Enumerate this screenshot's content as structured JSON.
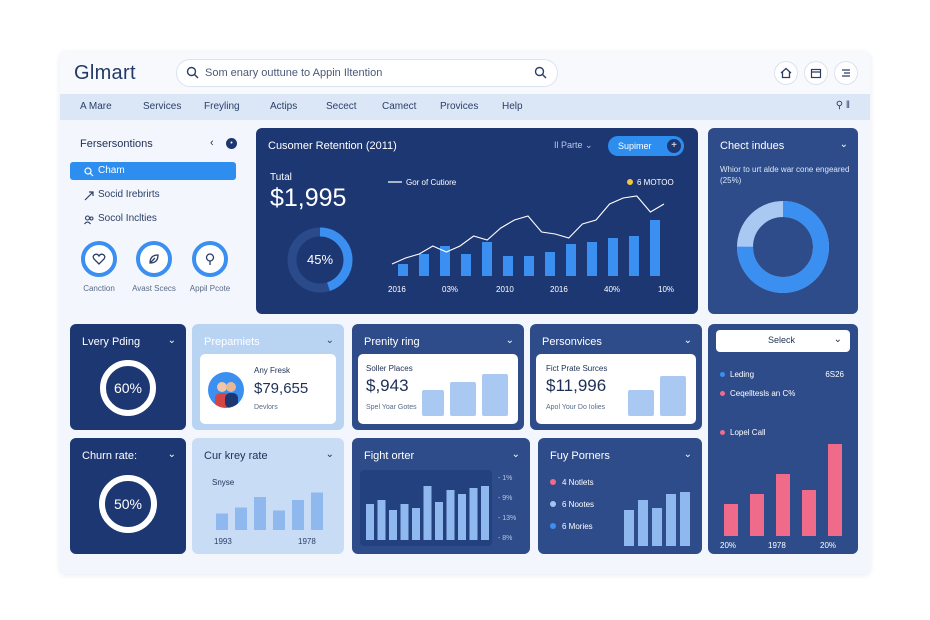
{
  "app": {
    "logo": "Glmart"
  },
  "search": {
    "text": "Som enary outtune to Appin Iltention"
  },
  "nav": {
    "items": [
      "A Mare",
      "Services",
      "Freyling",
      "Actips",
      "Secect",
      "Camect",
      "Provices",
      "Help"
    ],
    "right": "⚲ ‖"
  },
  "sidebar": {
    "title": "Fersersontions",
    "back": "‹",
    "items": [
      "Cham",
      "Socid Irebrirts",
      "Socol Inclties"
    ],
    "circles": [
      "Canction",
      "Avast Scecs",
      "Appil Pcote"
    ]
  },
  "retention": {
    "title": "Cusomer Retention (2011)",
    "filter": "Il Parte",
    "button": "Supimer",
    "total_label": "Tutal",
    "total_value": "$1,995",
    "pct": "45%",
    "pct_value": 0.45,
    "legend1": "Gor of Cutiore",
    "legend2": "6 MOTOO",
    "xlabels": [
      "2016",
      "03%",
      "2010",
      "2016",
      "40%",
      "10%"
    ],
    "bars": [
      12,
      22,
      30,
      22,
      34,
      20,
      20,
      24,
      32,
      34,
      38,
      40,
      56
    ],
    "line": [
      12,
      18,
      22,
      30,
      24,
      30,
      40,
      36,
      48,
      56,
      60,
      44,
      42,
      38,
      52,
      56,
      72,
      78,
      80,
      64,
      72
    ]
  },
  "check": {
    "title": "Chect indues",
    "subtitle": "Whior to urt alde war cone engeared (25%)",
    "donut_value": 0.75
  },
  "lvery": {
    "title": "Lvery Pding",
    "value": "60%",
    "progress": 0.6
  },
  "churn": {
    "title": "Churn rate:",
    "value": "50%",
    "progress": 0.5
  },
  "prepamiets": {
    "title": "Prepamiets",
    "label": "Any Fresk",
    "value": "$79,655",
    "sub": "Devlors"
  },
  "prenity": {
    "title": "Prenity ring",
    "label": "Soller Places",
    "value": "$,943",
    "sub": "Spel Yoar Gotes"
  },
  "personvices": {
    "title": "Personvices",
    "label": "Fict Prate Surces",
    "value": "$11,996",
    "sub": "Apol Your Do Iolies"
  },
  "select_card": {
    "select": "Seleck",
    "legend": [
      {
        "label": "Leding",
        "value": "6S26",
        "color": "#3a8ff0"
      },
      {
        "label": "Ceqelltesls an C%",
        "value": "",
        "color": "#f06b8a"
      },
      {
        "label": "Lopel Call",
        "value": "",
        "color": "#f06b8a"
      }
    ],
    "xlabels": [
      "20%",
      "1978",
      "20%"
    ],
    "bars": [
      32,
      42,
      62,
      46,
      92
    ]
  },
  "curkey": {
    "title": "Cur krey rate",
    "label": "Snyse",
    "xlabels": [
      "1993",
      "1978"
    ],
    "bars": [
      22,
      30,
      44,
      26,
      40,
      50
    ]
  },
  "fight": {
    "title": "Fight orter",
    "ticks": [
      "- 1%",
      "- 9%",
      "- 13%",
      "- 8%"
    ],
    "bars": [
      36,
      40,
      30,
      36,
      32,
      54,
      38,
      50,
      46,
      52,
      54
    ]
  },
  "fuy": {
    "title": "Fuy Porners",
    "legend": [
      {
        "label": "4 Notlets",
        "color": "#f06b8a"
      },
      {
        "label": "6 Nootes",
        "color": "#9fc5f5"
      },
      {
        "label": "6 Mories",
        "color": "#3a8ff0"
      }
    ],
    "bars": [
      36,
      46,
      38,
      52,
      54
    ]
  },
  "colors": {
    "accent": "#3a8ff0",
    "dark": "#1d3772",
    "pink": "#f06b8a"
  }
}
